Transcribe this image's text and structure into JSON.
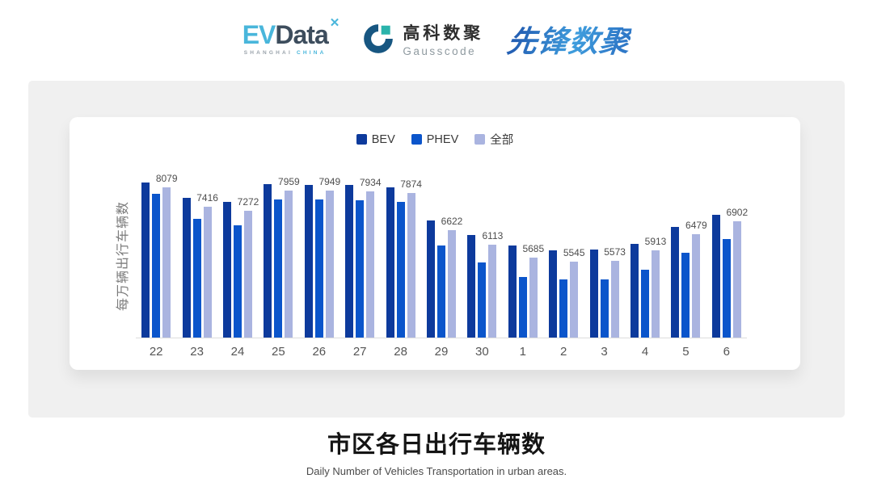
{
  "header": {
    "evdata": {
      "ev": "EV",
      "data": "Data",
      "tagline_city": "SHANGHAI",
      "tagline_country": "CHINA"
    },
    "gausscode": {
      "name_cn": "高科数聚",
      "name_en": "Gausscode"
    },
    "pioneer": {
      "name_cn": "先锋数聚"
    }
  },
  "footer": {
    "title": "市区各日出行车辆数",
    "subtitle": "Daily Number of Vehicles Transportation in urban areas."
  },
  "ui_colors": {
    "panel_bg": "#f0f0f0",
    "card_bg": "#ffffff",
    "axis_line": "#dddddd"
  },
  "chart_data": {
    "type": "bar",
    "ylabel": "每万辆出行车辆数",
    "legend_position": "top-center",
    "grid": false,
    "ylim": [
      2950,
      8450
    ],
    "categories": [
      "22",
      "23",
      "24",
      "25",
      "26",
      "27",
      "28",
      "29",
      "30",
      "1",
      "2",
      "3",
      "4",
      "5",
      "6"
    ],
    "series": [
      {
        "name": "BEV",
        "color": "#0d3a9c",
        "values": [
          8235,
          7700,
          7570,
          8180,
          8155,
          8160,
          8065,
          6935,
          6455,
          6075,
          5920,
          5955,
          6155,
          6720,
          7145
        ],
        "labeled": false,
        "note": "values estimated from bar heights"
      },
      {
        "name": "PHEV",
        "color": "#0b55cb",
        "values": [
          7860,
          6990,
          6780,
          7660,
          7645,
          7615,
          7570,
          6090,
          5510,
          5025,
          4935,
          4930,
          5265,
          5845,
          6300
        ],
        "labeled": false,
        "note": "values estimated from bar heights"
      },
      {
        "name": "全部",
        "color": "#aab4e0",
        "values": [
          8079,
          7416,
          7272,
          7959,
          7949,
          7934,
          7874,
          6622,
          6113,
          5685,
          5545,
          5573,
          5913,
          6479,
          6902
        ],
        "labeled": true
      }
    ]
  }
}
